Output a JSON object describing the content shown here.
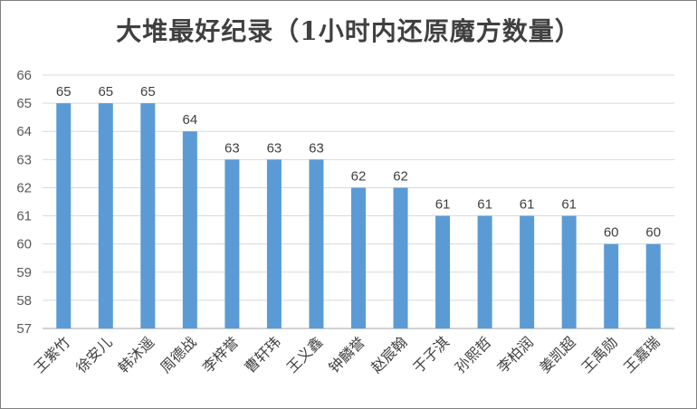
{
  "chart_data": {
    "type": "bar",
    "title": "大堆最好纪录（1小时内还原魔方数量）",
    "categories": [
      "王紫竹",
      "徐安儿",
      "韩沐遥",
      "周德战",
      "李梓誉",
      "曹轩玮",
      "王义鑫",
      "钟麟誉",
      "赵宸翰",
      "于子淇",
      "孙熙哲",
      "李柏润",
      "姜凯超",
      "王禹勋",
      "王嘉瑞"
    ],
    "values": [
      65,
      65,
      65,
      64,
      63,
      63,
      63,
      62,
      62,
      61,
      61,
      61,
      61,
      60,
      60
    ],
    "ylim": [
      57,
      66
    ],
    "yticks": [
      "57",
      "58",
      "59",
      "60",
      "61",
      "62",
      "63",
      "64",
      "65",
      "66"
    ],
    "xlabel": "",
    "ylabel": "",
    "grid": true,
    "legend": "none",
    "bar_color": "#5b9bd5",
    "grid_color": "#d9d9d9",
    "axis_color": "#a6a6a6",
    "label_color": "#404040",
    "tick_color": "#595959"
  }
}
